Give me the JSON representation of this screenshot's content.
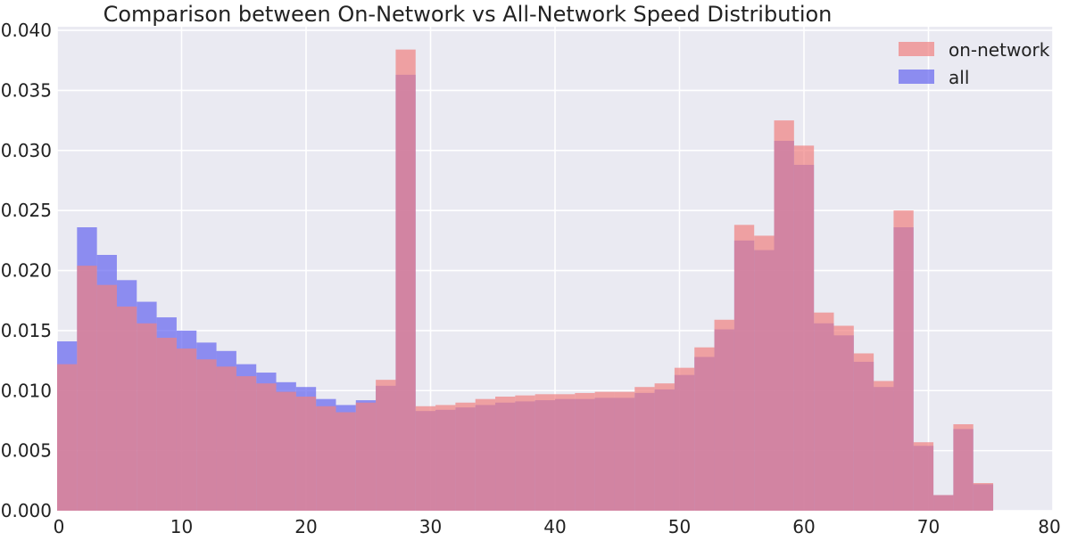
{
  "chart_data": {
    "type": "bar",
    "title": "Comparison between On-Network vs All-Network Speed Distribution",
    "xlabel": "",
    "ylabel": "",
    "xlim": [
      0,
      80
    ],
    "ylim": [
      0,
      0.0403
    ],
    "x_ticks": [
      0,
      10,
      20,
      30,
      40,
      50,
      60,
      70,
      80
    ],
    "y_ticks": [
      "0.000",
      "0.005",
      "0.010",
      "0.015",
      "0.020",
      "0.025",
      "0.030",
      "0.035",
      "0.040"
    ],
    "grid": true,
    "legend_position": "top-right",
    "bin_width": 1.6,
    "bin_start": 0,
    "colors": {
      "background": "#eaeaf2",
      "grid": "#ffffff",
      "on_network": "#f08080",
      "all": "#6464f0"
    },
    "series": [
      {
        "name": "on-network",
        "color": "#f08080",
        "values": [
          0.0122,
          0.0204,
          0.0188,
          0.017,
          0.0156,
          0.0144,
          0.0135,
          0.0126,
          0.012,
          0.0112,
          0.0106,
          0.0099,
          0.0095,
          0.0087,
          0.0082,
          0.009,
          0.0109,
          0.0384,
          0.0087,
          0.0088,
          0.009,
          0.0093,
          0.0095,
          0.0096,
          0.0097,
          0.0097,
          0.0098,
          0.0099,
          0.0099,
          0.0103,
          0.0106,
          0.0119,
          0.0136,
          0.0159,
          0.0238,
          0.0229,
          0.0325,
          0.0304,
          0.0165,
          0.0154,
          0.0131,
          0.0108,
          0.025,
          0.0057,
          0.0013,
          0.0072,
          0.0023
        ]
      },
      {
        "name": "all",
        "color": "#6464f0",
        "values": [
          0.0141,
          0.0236,
          0.0213,
          0.0192,
          0.0174,
          0.0161,
          0.015,
          0.014,
          0.0133,
          0.0122,
          0.0115,
          0.0107,
          0.0103,
          0.0093,
          0.0088,
          0.0092,
          0.0104,
          0.0363,
          0.0083,
          0.0084,
          0.0086,
          0.0088,
          0.009,
          0.0091,
          0.0092,
          0.0093,
          0.0093,
          0.0094,
          0.0094,
          0.0098,
          0.0101,
          0.0113,
          0.0128,
          0.0151,
          0.0225,
          0.0217,
          0.0308,
          0.0288,
          0.0156,
          0.0146,
          0.0124,
          0.0103,
          0.0236,
          0.0054,
          0.0013,
          0.0068,
          0.0022
        ]
      }
    ]
  }
}
